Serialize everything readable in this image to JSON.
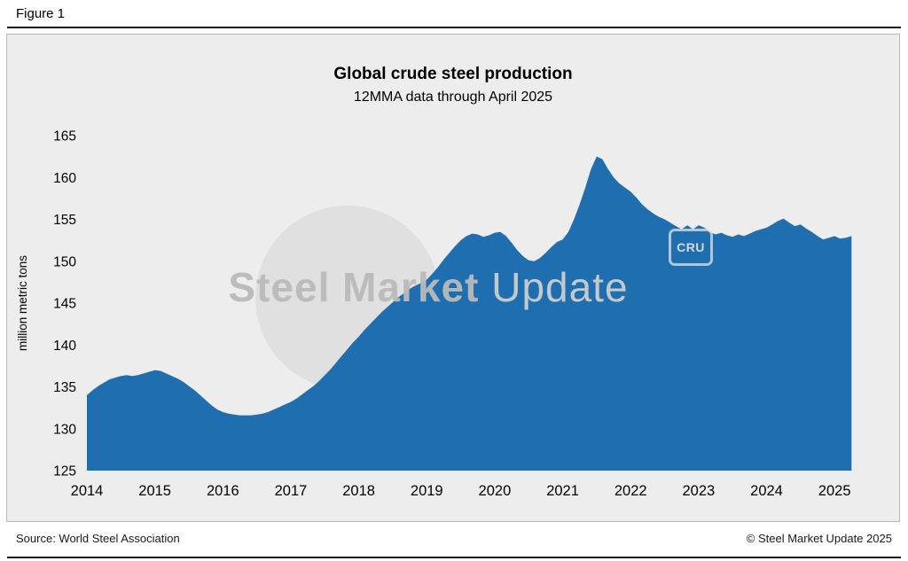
{
  "figure": {
    "label": "Figure 1"
  },
  "chart": {
    "title": "Global crude steel production",
    "subtitle": "12MMA data through April 2025",
    "y_axis_label": "million metric tons"
  },
  "watermark": {
    "text_bold": "Steel Market",
    "text_light": " Update",
    "cru_label": "CRU"
  },
  "footer": {
    "source": "Source: World Steel Association",
    "copyright": "© Steel Market Update 2025"
  },
  "colors": {
    "area_fill": "#1f6fb0",
    "panel_bg": "#ededed",
    "tick_text": "#000000"
  },
  "chart_data": {
    "type": "area",
    "title": "Global crude steel production",
    "subtitle": "12MMA data through April 2025",
    "xlabel": "",
    "ylabel": "million metric tons",
    "ylim": [
      125,
      165
    ],
    "xlim": [
      2014,
      2025.35
    ],
    "yticks": [
      125,
      130,
      135,
      140,
      145,
      150,
      155,
      160,
      165
    ],
    "xticks": [
      2014,
      2015,
      2016,
      2017,
      2018,
      2019,
      2020,
      2021,
      2022,
      2023,
      2024,
      2025
    ],
    "grid": false,
    "legend": "none",
    "x_start_year": 2014.0,
    "x_step": "monthly",
    "x_end_label": "April 2025",
    "values": [
      134.0,
      134.6,
      135.1,
      135.5,
      135.9,
      136.1,
      136.3,
      136.4,
      136.3,
      136.4,
      136.6,
      136.8,
      137.0,
      136.9,
      136.6,
      136.3,
      136.0,
      135.6,
      135.1,
      134.6,
      134.0,
      133.4,
      132.8,
      132.3,
      132.0,
      131.8,
      131.7,
      131.6,
      131.6,
      131.6,
      131.7,
      131.8,
      132.0,
      132.3,
      132.6,
      132.9,
      133.2,
      133.6,
      134.1,
      134.6,
      135.1,
      135.7,
      136.4,
      137.1,
      137.9,
      138.7,
      139.5,
      140.3,
      141.0,
      141.8,
      142.5,
      143.2,
      143.9,
      144.5,
      145.1,
      145.7,
      146.2,
      146.7,
      147.1,
      147.4,
      147.8,
      148.5,
      149.3,
      150.2,
      151.0,
      151.8,
      152.5,
      153.0,
      153.3,
      153.2,
      152.9,
      153.1,
      153.4,
      153.5,
      153.0,
      152.2,
      151.3,
      150.6,
      150.1,
      150.0,
      150.4,
      151.0,
      151.7,
      152.3,
      152.6,
      153.5,
      155.0,
      156.8,
      158.8,
      161.0,
      162.5,
      162.2,
      161.0,
      160.0,
      159.3,
      158.8,
      158.3,
      157.6,
      156.8,
      156.2,
      155.7,
      155.3,
      155.0,
      154.6,
      154.2,
      153.8,
      154.3,
      153.8,
      154.3,
      154.0,
      153.5,
      153.2,
      153.4,
      153.1,
      152.9,
      153.2,
      153.0,
      153.3,
      153.6,
      153.8,
      154.0,
      154.4,
      154.8,
      155.1,
      154.6,
      154.2,
      154.4,
      153.9,
      153.5,
      153.0,
      152.6,
      152.8,
      153.0,
      152.7,
      152.8,
      153.0
    ]
  }
}
